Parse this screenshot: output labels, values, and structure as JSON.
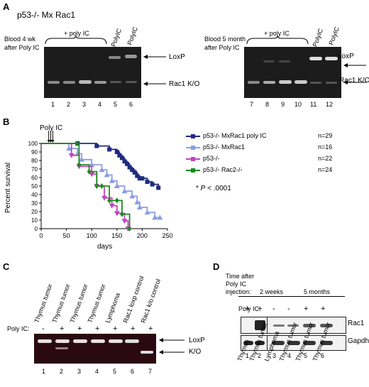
{
  "panelA": {
    "letter": "A",
    "title": "p53-/- Mx Rac1",
    "left": {
      "caption_l1": "Blood 4 wk",
      "caption_l2": "after Poly IC",
      "brace_label": "+ poly IC",
      "minus_labels": [
        "-PolyIC",
        "- PolyIC"
      ],
      "lanes": [
        "1",
        "2",
        "3",
        "4",
        "5",
        "6"
      ],
      "loxp": "LoxP",
      "ko": "Rac1 K/O"
    },
    "right": {
      "caption_l1": "Blood 5 month",
      "caption_l2": "after Poly IC",
      "brace_label": "+ poly IC",
      "minus_labels": [
        "-PolyIC",
        "- PolyIC"
      ],
      "lanes": [
        "7",
        "8",
        "9",
        "10",
        "11",
        "12"
      ],
      "loxp": "LoxP",
      "ko": "Rac1 K/O"
    }
  },
  "panelB": {
    "letter": "B",
    "annotation": "Poly IC",
    "pvalue_star": "* ",
    "pvalue_p": "P",
    "pvalue_rest": " < .0001",
    "chart_data": {
      "type": "line",
      "xlabel": "days",
      "ylabel": "Percent survival",
      "xlim": [
        0,
        250
      ],
      "ylim": [
        0,
        100
      ],
      "xticks": [
        0,
        50,
        100,
        150,
        200,
        250
      ],
      "yticks": [
        0,
        10,
        20,
        30,
        40,
        50,
        60,
        70,
        80,
        90,
        100
      ],
      "step": true,
      "series": [
        {
          "name": "p53-/- MxRac1 poly IC",
          "n": "n=29",
          "color": "#1f2a80",
          "marker": "square",
          "points": [
            [
              0,
              100
            ],
            [
              72,
              100
            ],
            [
              110,
              97
            ],
            [
              135,
              93
            ],
            [
              150,
              90
            ],
            [
              155,
              86
            ],
            [
              160,
              83
            ],
            [
              165,
              79
            ],
            [
              170,
              76
            ],
            [
              175,
              72
            ],
            [
              180,
              69
            ],
            [
              185,
              66
            ],
            [
              190,
              62
            ],
            [
              195,
              59
            ],
            [
              200,
              59
            ],
            [
              210,
              55
            ],
            [
              220,
              52
            ],
            [
              232,
              48
            ]
          ]
        },
        {
          "name": "p53-/- MxRac1",
          "n": "n=16",
          "color": "#8a9ee0",
          "marker": "triangle",
          "points": [
            [
              0,
              100
            ],
            [
              55,
              94
            ],
            [
              72,
              88
            ],
            [
              80,
              81
            ],
            [
              100,
              75
            ],
            [
              120,
              69
            ],
            [
              130,
              63
            ],
            [
              140,
              56
            ],
            [
              150,
              50
            ],
            [
              165,
              44
            ],
            [
              180,
              38
            ],
            [
              190,
              31
            ],
            [
              195,
              25
            ],
            [
              210,
              19
            ],
            [
              225,
              13
            ],
            [
              235,
              13
            ]
          ]
        },
        {
          "name": "p53-/-",
          "n": "n=22",
          "color": "#c044c0",
          "marker": "triangle-down",
          "points": [
            [
              0,
              100
            ],
            [
              60,
              86
            ],
            [
              75,
              73
            ],
            [
              100,
              64
            ],
            [
              110,
              50
            ],
            [
              125,
              36
            ],
            [
              140,
              27
            ],
            [
              150,
              18
            ],
            [
              165,
              9
            ],
            [
              172,
              0
            ]
          ]
        },
        {
          "name": "p53-/- Rac2-/-",
          "n": "n=24",
          "color": "#1e8a1e",
          "marker": "diamond",
          "points": [
            [
              0,
              100
            ],
            [
              70,
              100
            ],
            [
              75,
              75
            ],
            [
              95,
              67
            ],
            [
              110,
              50
            ],
            [
              120,
              50
            ],
            [
              135,
              33
            ],
            [
              150,
              33
            ],
            [
              160,
              17
            ],
            [
              175,
              0
            ]
          ]
        }
      ]
    }
  },
  "panelC": {
    "letter": "C",
    "lane_labels": [
      "Thymus tumor",
      "Thymus tumor",
      "Thymus tumor",
      "Thymus tumor",
      "Lymphoma",
      "Rac1 loxp control",
      "Rac1 k/o control"
    ],
    "polyic_label": "Poly IC:",
    "signs": [
      "-",
      "+",
      "+",
      "+",
      "+",
      "+",
      "+"
    ],
    "lanes": [
      "1",
      "2",
      "3",
      "4",
      "5",
      "6",
      "7"
    ],
    "loxp": "LoxP",
    "ko": "K/O"
  },
  "panelD": {
    "letter": "D",
    "time_l1": "Time after",
    "time_l2": "Poly IC",
    "time_l3": "injection:",
    "time_2w": "2 weeks",
    "time_5m": "5 months",
    "polyic_label": "Poly IC:",
    "signs": [
      "+",
      "+",
      "-",
      "-",
      "+",
      "+"
    ],
    "rac1": "Rac1",
    "gapdh": "Gapdh",
    "lanes": [
      "1",
      "2",
      "3",
      "4",
      "5",
      "6"
    ],
    "lane_labels": [
      "Thymus",
      "Thymus tumor",
      "Lymphoma",
      "Thymus tumor",
      "Thymus tumor",
      "Thymus tumor"
    ]
  }
}
